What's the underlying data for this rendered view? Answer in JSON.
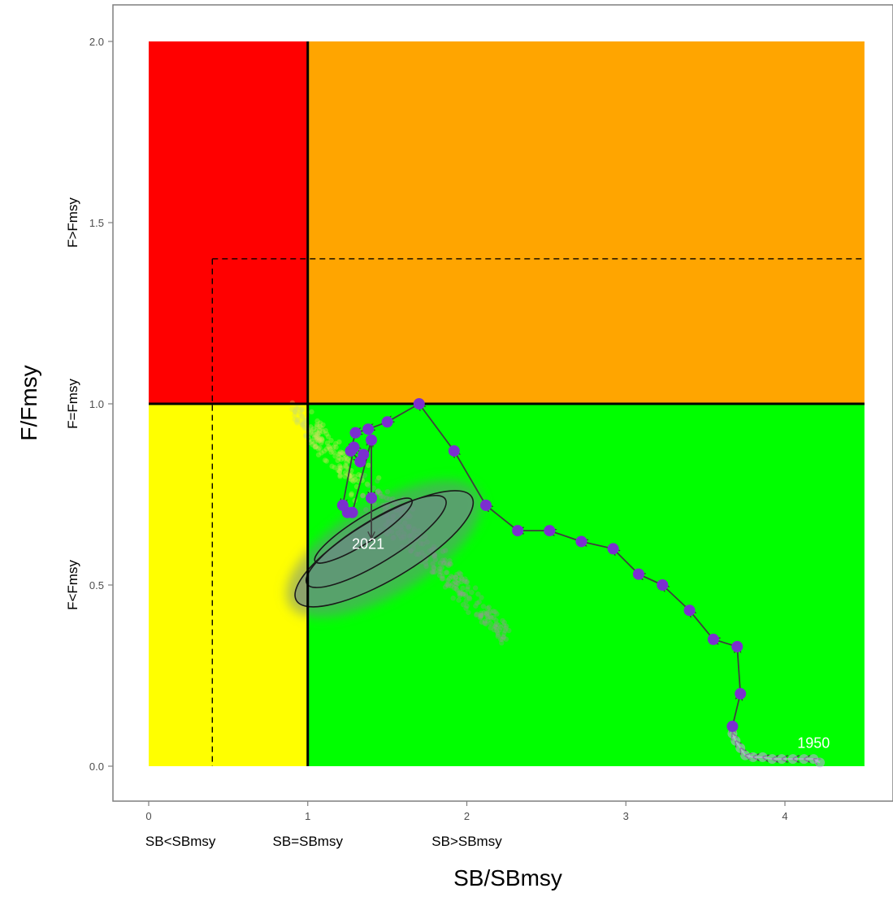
{
  "chart_data": {
    "type": "scatter",
    "title": "",
    "xlabel": "SB/SBmsy",
    "ylabel": "F/Fmsy",
    "xlim": [
      -0.07,
      4.65
    ],
    "ylim": [
      -0.1,
      2.1
    ],
    "x_ticks": [
      0,
      1,
      2,
      3,
      4
    ],
    "x_tick_labels": [
      "0",
      "1",
      "2",
      "3",
      "4"
    ],
    "y_ticks": [
      0.0,
      0.5,
      1.0,
      1.5,
      2.0
    ],
    "y_tick_labels": [
      "0.0",
      "0.5",
      "1.0",
      "1.5",
      "2.0"
    ],
    "x_zone_labels": [
      {
        "x": 0.2,
        "text": "SB<SBmsy"
      },
      {
        "x": 1.0,
        "text": "SB=SBmsy"
      },
      {
        "x": 2.0,
        "text": "SB>SBmsy"
      }
    ],
    "y_zone_labels": [
      {
        "y": 0.5,
        "text": "F<Fmsy"
      },
      {
        "y": 1.0,
        "text": "F=Fmsy"
      },
      {
        "y": 1.5,
        "text": "F>Fmsy"
      }
    ],
    "quadrants": [
      {
        "name": "overfished-overfishing",
        "x": [
          0,
          1
        ],
        "y": [
          1,
          2
        ],
        "color": "#ff0000"
      },
      {
        "name": "overfishing",
        "x": [
          1,
          4.5
        ],
        "y": [
          1,
          2
        ],
        "color": "#ffa500"
      },
      {
        "name": "overfished",
        "x": [
          0,
          1
        ],
        "y": [
          0,
          1
        ],
        "color": "#ffff00"
      },
      {
        "name": "healthy",
        "x": [
          1,
          4.5
        ],
        "y": [
          0,
          1
        ],
        "color": "#00ff00"
      }
    ],
    "reference_lines": {
      "solid_vertical_x": 1.0,
      "solid_horizontal_y": 1.0,
      "dashed_vertical_x": 0.4,
      "dashed_horizontal_y": 1.4,
      "dashed_top_y": 1.4
    },
    "trajectory": {
      "color": "#7b2fcf",
      "faded_color": "#c4a8e8",
      "arrow_color": "#3f3f3f",
      "start_label": "1950",
      "end_label": "2021",
      "start_label_pos": [
        4.18,
        0.05
      ],
      "end_label_pos": [
        1.38,
        0.6
      ],
      "faded_points": [
        [
          4.22,
          0.01
        ],
        [
          4.18,
          0.02
        ],
        [
          4.12,
          0.02
        ],
        [
          4.05,
          0.02
        ],
        [
          3.98,
          0.02
        ],
        [
          3.92,
          0.02
        ],
        [
          3.86,
          0.025
        ],
        [
          3.8,
          0.025
        ],
        [
          3.75,
          0.03
        ],
        [
          3.72,
          0.05
        ],
        [
          3.69,
          0.07
        ],
        [
          3.67,
          0.09
        ]
      ],
      "points": [
        [
          3.67,
          0.11
        ],
        [
          3.72,
          0.2
        ],
        [
          3.7,
          0.33
        ],
        [
          3.55,
          0.35
        ],
        [
          3.4,
          0.43
        ],
        [
          3.23,
          0.5
        ],
        [
          3.08,
          0.53
        ],
        [
          2.92,
          0.6
        ],
        [
          2.72,
          0.62
        ],
        [
          2.52,
          0.65
        ],
        [
          2.32,
          0.65
        ],
        [
          2.12,
          0.72
        ],
        [
          1.92,
          0.87
        ],
        [
          1.7,
          1.0
        ],
        [
          1.5,
          0.95
        ],
        [
          1.38,
          0.93
        ],
        [
          1.3,
          0.92
        ],
        [
          1.27,
          0.87
        ],
        [
          1.33,
          0.84
        ],
        [
          1.35,
          0.86
        ],
        [
          1.29,
          0.88
        ],
        [
          1.22,
          0.72
        ],
        [
          1.25,
          0.7
        ],
        [
          1.28,
          0.7
        ],
        [
          1.4,
          0.9
        ],
        [
          1.4,
          0.74
        ]
      ],
      "final_point": [
        1.4,
        0.63
      ]
    },
    "uncertainty": {
      "cloud_color_start": "#d0e060",
      "density_fill": "#6e8a86",
      "contour_color": "#1a1a1a",
      "cloud_axis": {
        "from": [
          0.92,
          0.98
        ],
        "to": [
          2.25,
          0.36
        ]
      },
      "contours": [
        {
          "center": [
            1.48,
            0.6
          ],
          "angle_deg": -30.5,
          "rx": 0.64,
          "ry": 0.085
        },
        {
          "center": [
            1.43,
            0.62
          ],
          "angle_deg": -31.5,
          "rx": 0.51,
          "ry": 0.058
        },
        {
          "center": [
            1.35,
            0.65
          ],
          "angle_deg": -32.5,
          "rx": 0.36,
          "ry": 0.034
        }
      ]
    }
  }
}
